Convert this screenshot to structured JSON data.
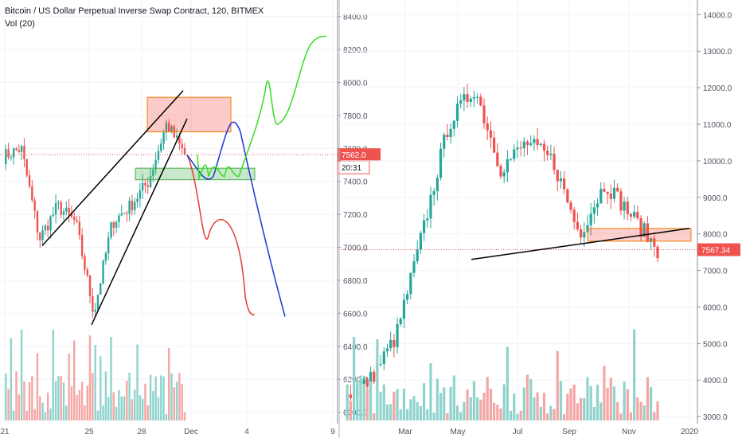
{
  "legend": {
    "title": "Bitcoin / US Dollar Perpetual Inverse Swap Contract, 120, BITMEX",
    "vol": "Vol (20)"
  },
  "colors": {
    "up": "#26a69a",
    "down": "#ef5350",
    "upVol": "#8fd3cc",
    "downVol": "#f4a6a4",
    "lastLine": "#ef5350",
    "grid": "#f0f3fa",
    "axisText": "#4c525e",
    "tagBg": "#ef5350",
    "timerBg": "#ffffff"
  },
  "chart_data": [
    {
      "type": "candlestick",
      "panel": "left",
      "timeframe": "120",
      "x_ticks": [
        "21",
        "25",
        "28",
        "Dec",
        "4",
        "9"
      ],
      "y_ticks": [
        6000,
        6200,
        6400,
        6600,
        6800,
        7000,
        7200,
        7400,
        7600,
        7800,
        8000,
        8200,
        8400
      ],
      "ylim": [
        5940,
        8500
      ],
      "last_price": "7562.0",
      "countdown": "20:31",
      "ohlc_path": [
        {
          "x": "20",
          "close": 7550
        },
        {
          "x": "21",
          "close": 7600
        },
        {
          "x": "22",
          "close": 7050
        },
        {
          "x": "23",
          "close": 7250
        },
        {
          "x": "24",
          "close": 7150
        },
        {
          "x": "25",
          "close": 6600
        },
        {
          "x": "26",
          "close": 7150
        },
        {
          "x": "27",
          "close": 7250
        },
        {
          "x": "28",
          "close": 7400
        },
        {
          "x": "29",
          "close": 7750
        },
        {
          "x": "30",
          "close": 7562
        }
      ],
      "drawings": {
        "red_zone": [
          7700,
          7910
        ],
        "green_zone": [
          7410,
          7480
        ],
        "lower_trendline": [
          6530,
          7780
        ],
        "upper_trendline": [
          7010,
          7950
        ],
        "red_projection_end": 6590,
        "blue_projection_end": 6580,
        "green_projection_end": 8280
      }
    },
    {
      "type": "candlestick",
      "panel": "right",
      "timeframe": "daily",
      "x_ticks": [
        "Mar",
        "May",
        "Jul",
        "Sep",
        "Nov",
        "2020"
      ],
      "y_ticks": [
        3000,
        4000,
        5000,
        6000,
        7000,
        8000,
        9000,
        10000,
        11000,
        12000,
        13000,
        14000
      ],
      "ylim": [
        2850,
        14400
      ],
      "last_price": "7567.34",
      "ohlc_path": [
        {
          "x": "Feb",
          "close": 3500
        },
        {
          "x": "Mar",
          "close": 4000
        },
        {
          "x": "Apr",
          "close": 5200
        },
        {
          "x": "May",
          "close": 8000
        },
        {
          "x": "Jun",
          "close": 11000
        },
        {
          "x": "Jul",
          "close": 12000
        },
        {
          "x": "Jul-mid",
          "close": 9800
        },
        {
          "x": "Aug",
          "close": 10500
        },
        {
          "x": "Sep",
          "close": 10000
        },
        {
          "x": "Oct",
          "close": 8000
        },
        {
          "x": "Oct-end",
          "close": 9400
        },
        {
          "x": "Nov",
          "close": 8500
        },
        {
          "x": "Nov-end",
          "close": 7567
        }
      ],
      "drawings": {
        "orange_zone": [
          7800,
          8150
        ],
        "trendline": [
          7300,
          8150
        ]
      }
    }
  ]
}
